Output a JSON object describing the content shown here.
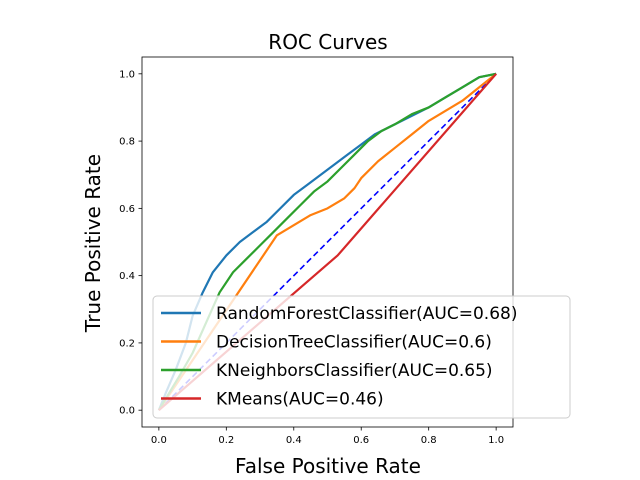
{
  "chart_data": {
    "type": "line",
    "title": "ROC Curves",
    "xlabel": "False Positive Rate",
    "ylabel": "True Positive Rate",
    "xlim": [
      -0.05,
      1.05
    ],
    "ylim": [
      -0.05,
      1.05
    ],
    "xticks": [
      0.0,
      0.2,
      0.4,
      0.6,
      0.8,
      1.0
    ],
    "yticks": [
      0.0,
      0.2,
      0.4,
      0.6,
      0.8,
      1.0
    ],
    "xtick_labels": [
      "0.0",
      "0.2",
      "0.4",
      "0.6",
      "0.8",
      "1.0"
    ],
    "ytick_labels": [
      "0.0",
      "0.2",
      "0.4",
      "0.6",
      "0.8",
      "1.0"
    ],
    "grid": false,
    "legend_position": "lower-right",
    "series": [
      {
        "name": "RandomForestClassifier(AUC=0.68)",
        "color": "#1f77b4",
        "x": [
          0.0,
          0.02,
          0.05,
          0.08,
          0.1,
          0.13,
          0.16,
          0.2,
          0.24,
          0.28,
          0.32,
          0.36,
          0.4,
          0.44,
          0.48,
          0.52,
          0.56,
          0.6,
          0.64,
          0.68,
          0.72,
          0.76,
          0.8,
          0.85,
          0.9,
          0.95,
          1.0
        ],
        "y": [
          0.0,
          0.05,
          0.12,
          0.2,
          0.28,
          0.35,
          0.41,
          0.46,
          0.5,
          0.53,
          0.56,
          0.6,
          0.64,
          0.67,
          0.7,
          0.73,
          0.76,
          0.79,
          0.82,
          0.84,
          0.86,
          0.88,
          0.9,
          0.93,
          0.96,
          0.99,
          1.0
        ]
      },
      {
        "name": "DecisionTreeClassifier(AUC=0.6)",
        "color": "#ff7f0e",
        "x": [
          0.0,
          0.35,
          0.45,
          0.5,
          0.55,
          0.58,
          0.6,
          0.65,
          0.7,
          0.75,
          0.8,
          0.85,
          0.9,
          0.95,
          1.0
        ],
        "y": [
          0.0,
          0.52,
          0.58,
          0.6,
          0.63,
          0.66,
          0.69,
          0.74,
          0.78,
          0.82,
          0.86,
          0.89,
          0.92,
          0.96,
          1.0
        ]
      },
      {
        "name": "KNeighborsClassifier(AUC=0.65)",
        "color": "#2ca02c",
        "x": [
          0.0,
          0.03,
          0.06,
          0.1,
          0.14,
          0.18,
          0.22,
          0.26,
          0.3,
          0.34,
          0.38,
          0.42,
          0.46,
          0.5,
          0.54,
          0.58,
          0.62,
          0.66,
          0.7,
          0.75,
          0.8,
          0.85,
          0.9,
          0.95,
          1.0
        ],
        "y": [
          0.0,
          0.05,
          0.1,
          0.17,
          0.26,
          0.35,
          0.41,
          0.45,
          0.49,
          0.53,
          0.57,
          0.61,
          0.65,
          0.68,
          0.72,
          0.76,
          0.8,
          0.83,
          0.85,
          0.88,
          0.9,
          0.93,
          0.96,
          0.99,
          1.0
        ]
      },
      {
        "name": "KMeans(AUC=0.46)",
        "color": "#d62728",
        "x": [
          0.0,
          0.53,
          1.0
        ],
        "y": [
          0.0,
          0.46,
          1.0
        ]
      }
    ],
    "reference_line": {
      "x": [
        0.0,
        1.0
      ],
      "y": [
        0.0,
        1.0
      ],
      "color": "#0000ff",
      "style": "dashed"
    }
  }
}
